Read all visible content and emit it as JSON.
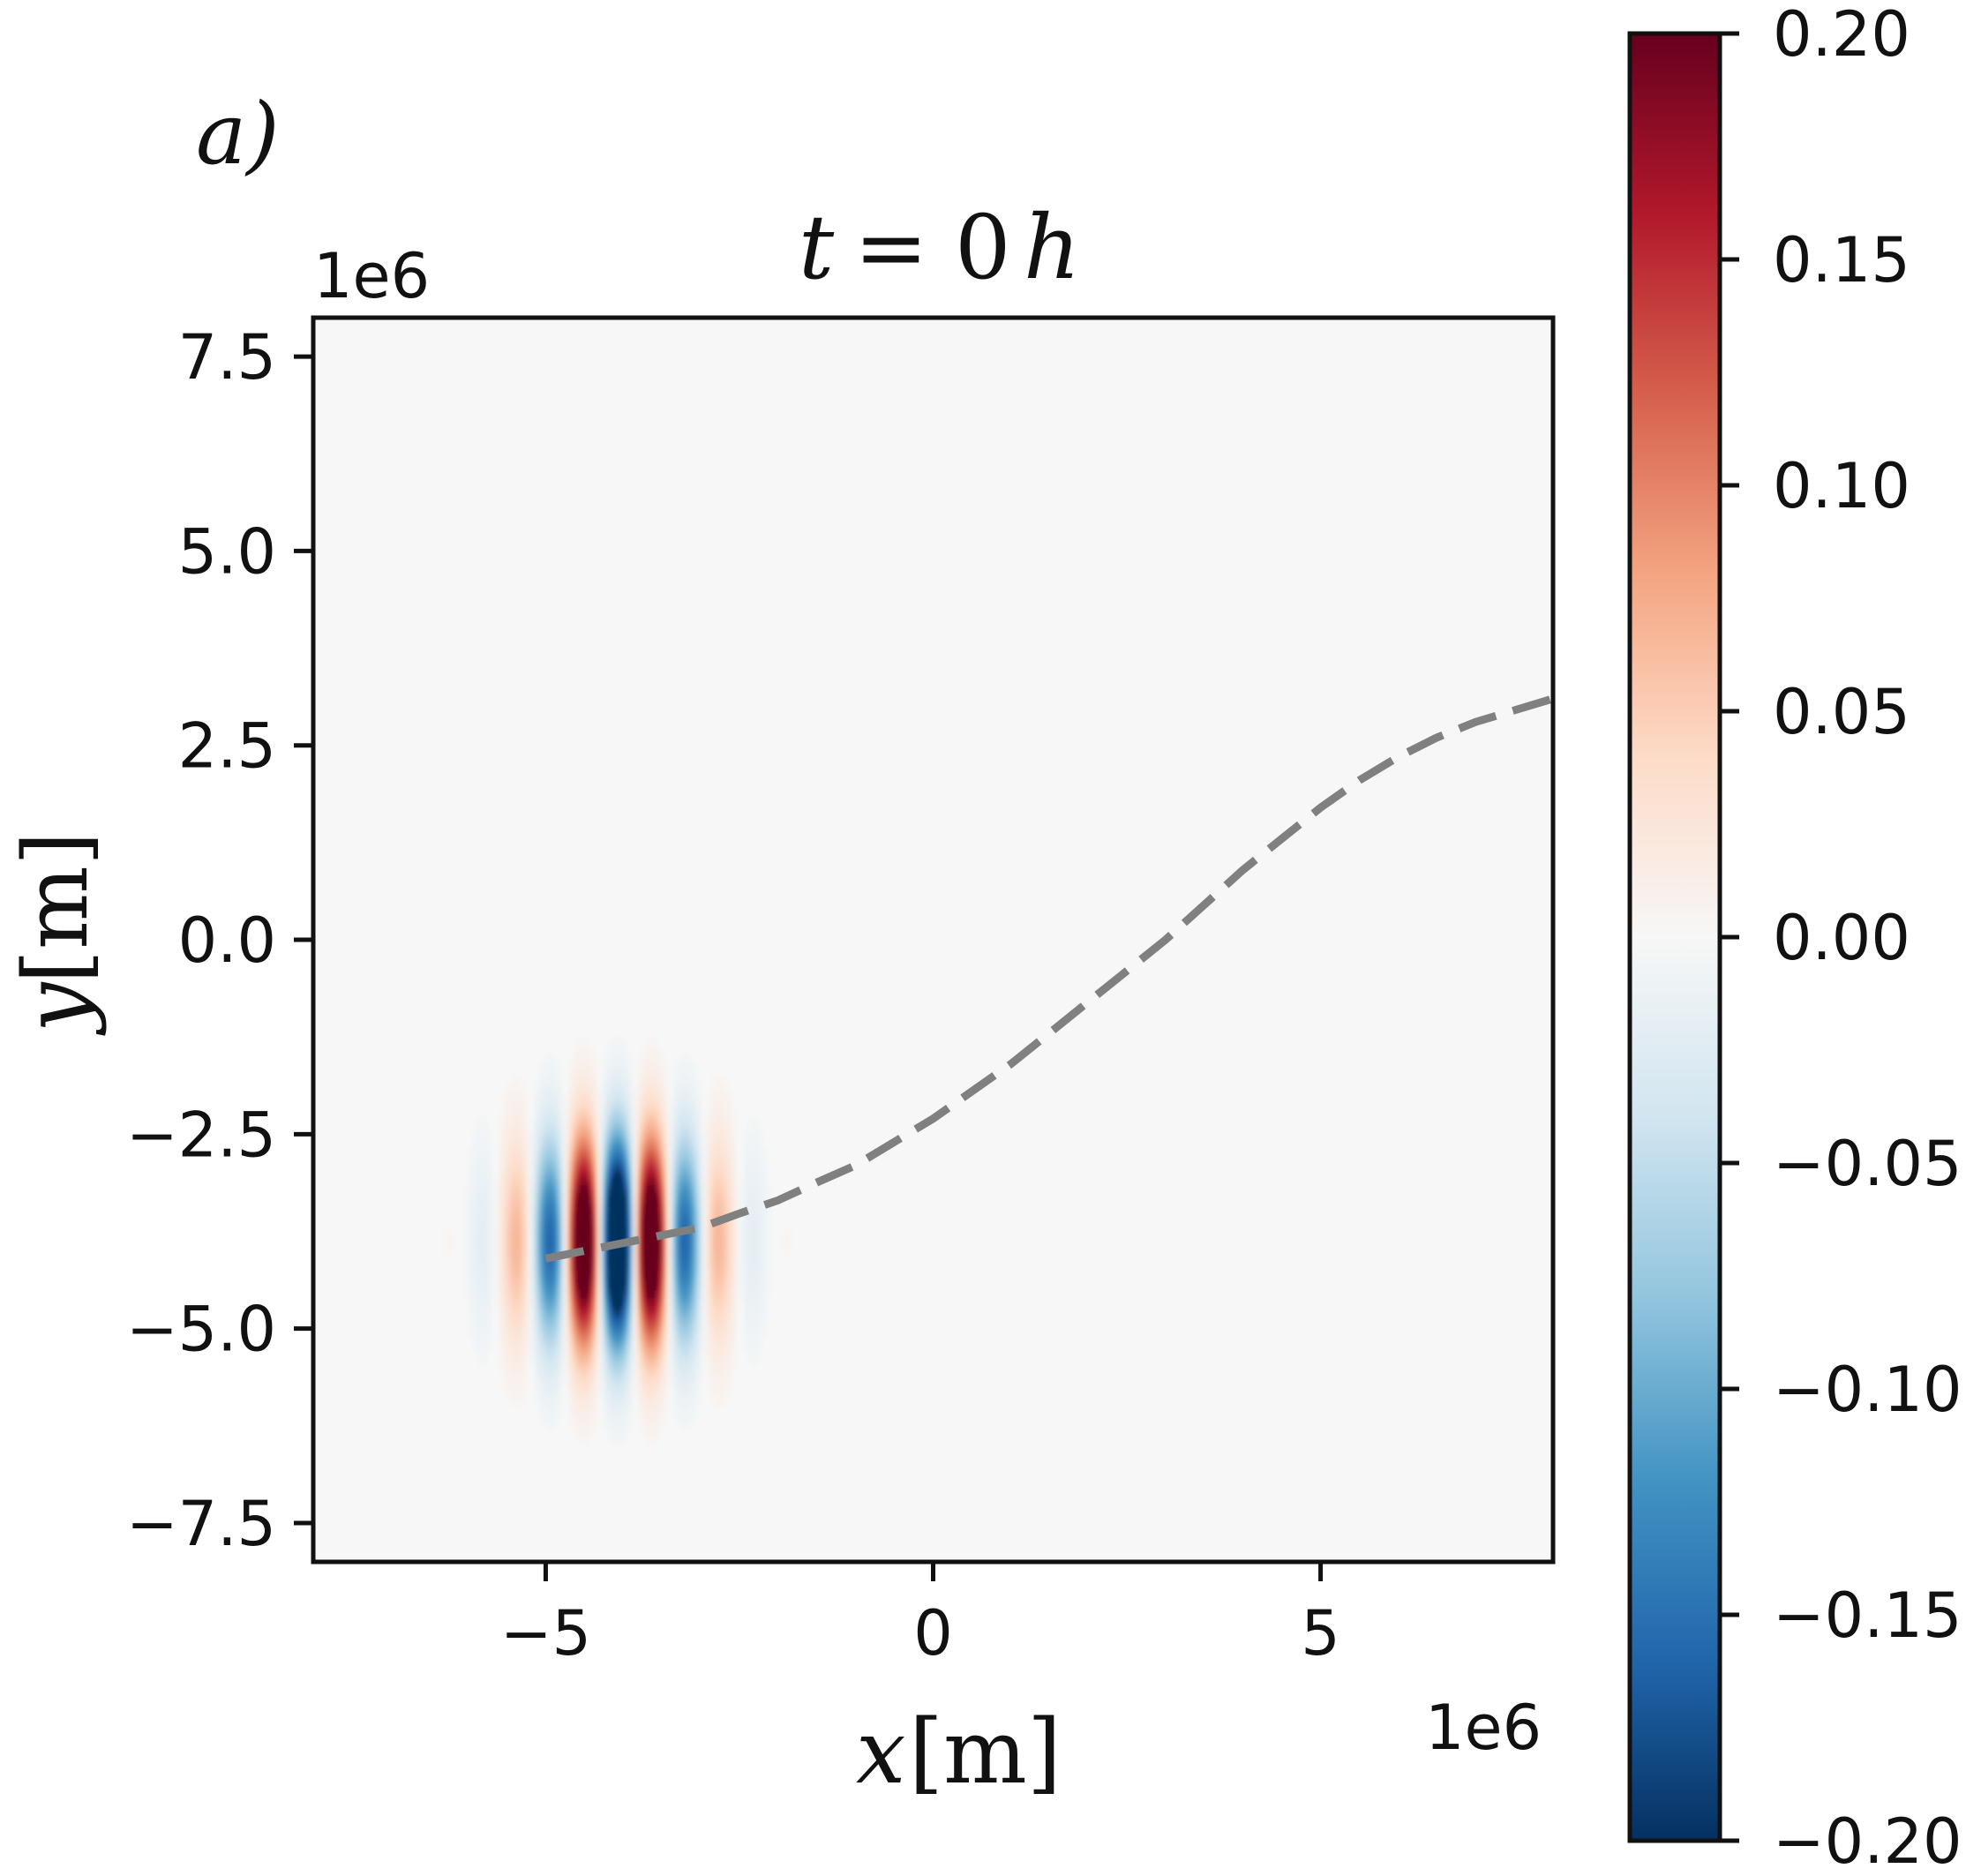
{
  "panel_label": "a)",
  "chart_data": {
    "type": "heatmap",
    "title": "t = 0 h",
    "title_parts": {
      "var": "t",
      "eq": "=",
      "num": "0",
      "unit": "h"
    },
    "xlabel": {
      "var": "x",
      "unit": "[m]"
    },
    "ylabel": {
      "var": "y",
      "unit": "[m]"
    },
    "x_offset_text": "1e6",
    "y_offset_text": "1e6",
    "xlim": [
      -8,
      8
    ],
    "ylim": [
      -8,
      8
    ],
    "x_ticks": [
      -5,
      0,
      5
    ],
    "x_tick_labels": [
      "−5",
      "0",
      "5"
    ],
    "y_ticks": [
      7.5,
      5.0,
      2.5,
      0.0,
      -2.5,
      -5.0,
      -7.5
    ],
    "y_tick_labels": [
      "7.5",
      "5.0",
      "2.5",
      "0.0",
      "−2.5",
      "−5.0",
      "−7.5"
    ],
    "grid": false,
    "colormap": "RdBu_r",
    "colorbar": {
      "range": [
        -0.2,
        0.2
      ],
      "ticks": [
        0.2,
        0.15,
        0.1,
        0.05,
        0.0,
        -0.05,
        -0.1,
        -0.15,
        -0.2
      ],
      "tick_labels": [
        "0.20",
        "0.15",
        "0.10",
        "0.05",
        "0.00",
        "−0.05",
        "−0.10",
        "−0.15",
        "−0.20"
      ],
      "colors": [
        "#053061",
        "#2166ac",
        "#4393c3",
        "#92c5de",
        "#d1e5f0",
        "#f7f7f7",
        "#fddbc7",
        "#f4a582",
        "#d6604d",
        "#b2182b",
        "#67001f"
      ]
    },
    "wave_packet": {
      "center": [
        -4.1,
        -3.9
      ],
      "wavelength": 0.9,
      "sigma_x": 0.75,
      "sigma_y": 0.9,
      "amplitude": 0.2
    },
    "trajectory": {
      "style": "dashed",
      "color": "#808080",
      "x": [
        -5.0,
        -4.5,
        -4.0,
        -3.5,
        -3.0,
        -2.5,
        -2.0,
        -1.5,
        -1.0,
        -0.5,
        0.0,
        0.5,
        1.0,
        1.5,
        2.0,
        2.5,
        3.0,
        3.5,
        4.0,
        4.5,
        5.0,
        5.5,
        6.0,
        6.5,
        7.0,
        7.5,
        8.0
      ],
      "y": [
        -4.1,
        -4.0,
        -3.9,
        -3.8,
        -3.7,
        -3.52,
        -3.35,
        -3.12,
        -2.9,
        -2.6,
        -2.3,
        -1.95,
        -1.6,
        -1.2,
        -0.8,
        -0.4,
        0.0,
        0.45,
        0.9,
        1.3,
        1.7,
        2.05,
        2.35,
        2.6,
        2.8,
        2.95,
        3.1
      ]
    }
  }
}
